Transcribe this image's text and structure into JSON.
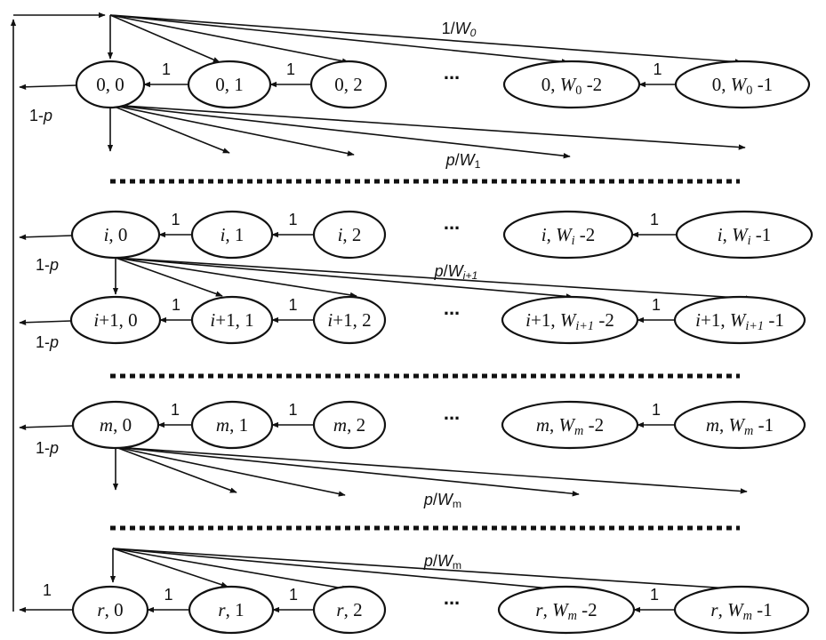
{
  "colors": {
    "stroke": "#111111",
    "background": "#ffffff"
  },
  "ellipsis": "...",
  "rows": [
    {
      "id": "row-0",
      "nodes": [
        {
          "id": "n-0-0",
          "parts": [
            {
              "t": "0, 0",
              "s": "n"
            }
          ]
        },
        {
          "id": "n-0-1",
          "parts": [
            {
              "t": "0, 1",
              "s": "n"
            }
          ]
        },
        {
          "id": "n-0-2",
          "parts": [
            {
              "t": "0, 2",
              "s": "n"
            }
          ]
        },
        {
          "id": "n-0-w2",
          "parts": [
            {
              "t": "0, ",
              "s": "n"
            },
            {
              "t": "W",
              "s": "i"
            },
            {
              "t": "0",
              "s": "sub"
            },
            {
              "t": " -2",
              "s": "n"
            }
          ]
        },
        {
          "id": "n-0-w1",
          "parts": [
            {
              "t": "0, ",
              "s": "n"
            },
            {
              "t": "W",
              "s": "i"
            },
            {
              "t": "0",
              "s": "sub"
            },
            {
              "t": " -1",
              "s": "n"
            }
          ]
        }
      ]
    },
    {
      "id": "row-i",
      "nodes": [
        {
          "id": "n-i-0",
          "parts": [
            {
              "t": "i",
              "s": "i"
            },
            {
              "t": ", 0",
              "s": "n"
            }
          ]
        },
        {
          "id": "n-i-1",
          "parts": [
            {
              "t": "i",
              "s": "i"
            },
            {
              "t": ", 1",
              "s": "n"
            }
          ]
        },
        {
          "id": "n-i-2",
          "parts": [
            {
              "t": "i",
              "s": "i"
            },
            {
              "t": ", 2",
              "s": "n"
            }
          ]
        },
        {
          "id": "n-i-w2",
          "parts": [
            {
              "t": "i",
              "s": "i"
            },
            {
              "t": ", ",
              "s": "n"
            },
            {
              "t": "W",
              "s": "i"
            },
            {
              "t": "i",
              "s": "isub"
            },
            {
              "t": " -2",
              "s": "n"
            }
          ]
        },
        {
          "id": "n-i-w1",
          "parts": [
            {
              "t": "i",
              "s": "i"
            },
            {
              "t": ", ",
              "s": "n"
            },
            {
              "t": "W",
              "s": "i"
            },
            {
              "t": "i",
              "s": "isub"
            },
            {
              "t": " -1",
              "s": "n"
            }
          ]
        }
      ]
    },
    {
      "id": "row-i1",
      "nodes": [
        {
          "id": "n-i1-0",
          "parts": [
            {
              "t": "i",
              "s": "i"
            },
            {
              "t": "+1, 0",
              "s": "n"
            }
          ]
        },
        {
          "id": "n-i1-1",
          "parts": [
            {
              "t": "i",
              "s": "i"
            },
            {
              "t": "+1, 1",
              "s": "n"
            }
          ]
        },
        {
          "id": "n-i1-2",
          "parts": [
            {
              "t": "i",
              "s": "i"
            },
            {
              "t": "+1, 2",
              "s": "n"
            }
          ]
        },
        {
          "id": "n-i1-w2",
          "parts": [
            {
              "t": "i",
              "s": "i"
            },
            {
              "t": "+1, ",
              "s": "n"
            },
            {
              "t": "W",
              "s": "i"
            },
            {
              "t": "i+1",
              "s": "isub"
            },
            {
              "t": " -2",
              "s": "n"
            }
          ]
        },
        {
          "id": "n-i1-w1",
          "parts": [
            {
              "t": "i",
              "s": "i"
            },
            {
              "t": "+1, ",
              "s": "n"
            },
            {
              "t": "W",
              "s": "i"
            },
            {
              "t": "i+1",
              "s": "isub"
            },
            {
              "t": " -1",
              "s": "n"
            }
          ]
        }
      ]
    },
    {
      "id": "row-m",
      "nodes": [
        {
          "id": "n-m-0",
          "parts": [
            {
              "t": "m",
              "s": "i"
            },
            {
              "t": ", 0",
              "s": "n"
            }
          ]
        },
        {
          "id": "n-m-1",
          "parts": [
            {
              "t": "m",
              "s": "i"
            },
            {
              "t": ", 1",
              "s": "n"
            }
          ]
        },
        {
          "id": "n-m-2",
          "parts": [
            {
              "t": "m",
              "s": "i"
            },
            {
              "t": ", 2",
              "s": "n"
            }
          ]
        },
        {
          "id": "n-m-w2",
          "parts": [
            {
              "t": "m",
              "s": "i"
            },
            {
              "t": ", ",
              "s": "n"
            },
            {
              "t": "W",
              "s": "i"
            },
            {
              "t": "m",
              "s": "isub"
            },
            {
              "t": " -2",
              "s": "n"
            }
          ]
        },
        {
          "id": "n-m-w1",
          "parts": [
            {
              "t": "m",
              "s": "i"
            },
            {
              "t": ", ",
              "s": "n"
            },
            {
              "t": "W",
              "s": "i"
            },
            {
              "t": "m",
              "s": "isub"
            },
            {
              "t": " -1",
              "s": "n"
            }
          ]
        }
      ]
    },
    {
      "id": "row-r",
      "nodes": [
        {
          "id": "n-r-0",
          "parts": [
            {
              "t": "r",
              "s": "i"
            },
            {
              "t": ", 0",
              "s": "n"
            }
          ]
        },
        {
          "id": "n-r-1",
          "parts": [
            {
              "t": "r",
              "s": "i"
            },
            {
              "t": ", 1",
              "s": "n"
            }
          ]
        },
        {
          "id": "n-r-2",
          "parts": [
            {
              "t": "r",
              "s": "i"
            },
            {
              "t": ", 2",
              "s": "n"
            }
          ]
        },
        {
          "id": "n-r-w2",
          "parts": [
            {
              "t": "r",
              "s": "i"
            },
            {
              "t": ", ",
              "s": "n"
            },
            {
              "t": "W",
              "s": "i"
            },
            {
              "t": "m",
              "s": "isub"
            },
            {
              "t": " -2",
              "s": "n"
            }
          ]
        },
        {
          "id": "n-r-w1",
          "parts": [
            {
              "t": "r",
              "s": "i"
            },
            {
              "t": ", ",
              "s": "n"
            },
            {
              "t": "W",
              "s": "i"
            },
            {
              "t": "m",
              "s": "isub"
            },
            {
              "t": " -1",
              "s": "n"
            }
          ]
        }
      ]
    }
  ],
  "edge_labels": [
    {
      "id": "lbl-top-1-w0",
      "parts": [
        {
          "t": "1/",
          "s": "n"
        },
        {
          "t": "W",
          "s": "i"
        },
        {
          "t": "0",
          "s": "isub"
        }
      ]
    },
    {
      "id": "lbl-p-w1",
      "parts": [
        {
          "t": "p",
          "s": "i"
        },
        {
          "t": "/",
          "s": "n"
        },
        {
          "t": "W",
          "s": "i"
        },
        {
          "t": "1",
          "s": "sub"
        }
      ]
    },
    {
      "id": "lbl-p-wi1",
      "parts": [
        {
          "t": "p",
          "s": "i"
        },
        {
          "t": "/",
          "s": "n"
        },
        {
          "t": "W",
          "s": "i"
        },
        {
          "t": "i+1",
          "s": "isub"
        }
      ]
    },
    {
      "id": "lbl-p-wm-1",
      "parts": [
        {
          "t": "p",
          "s": "i"
        },
        {
          "t": "/",
          "s": "n"
        },
        {
          "t": "W",
          "s": "i"
        },
        {
          "t": "m",
          "s": "sub"
        }
      ]
    },
    {
      "id": "lbl-p-wm-2",
      "parts": [
        {
          "t": "p",
          "s": "i"
        },
        {
          "t": "/",
          "s": "n"
        },
        {
          "t": "W",
          "s": "i"
        },
        {
          "t": "m",
          "s": "sub"
        }
      ]
    },
    {
      "id": "lbl-1mp-0",
      "parts": [
        {
          "t": "1-",
          "s": "n"
        },
        {
          "t": "p",
          "s": "i"
        }
      ]
    },
    {
      "id": "lbl-1mp-i",
      "parts": [
        {
          "t": "1-",
          "s": "n"
        },
        {
          "t": "p",
          "s": "i"
        }
      ]
    },
    {
      "id": "lbl-1mp-i1",
      "parts": [
        {
          "t": "1-",
          "s": "n"
        },
        {
          "t": "p",
          "s": "i"
        }
      ]
    },
    {
      "id": "lbl-1mp-m",
      "parts": [
        {
          "t": "1-",
          "s": "n"
        },
        {
          "t": "p",
          "s": "i"
        }
      ]
    },
    {
      "id": "lbl-r-out-1",
      "parts": [
        {
          "t": "1",
          "s": "n"
        }
      ]
    }
  ],
  "one_label": "1"
}
